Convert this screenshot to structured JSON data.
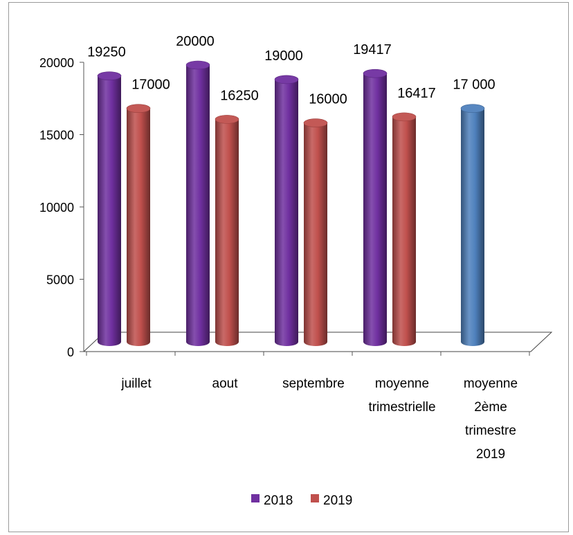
{
  "chart_data": {
    "type": "bar",
    "categories": [
      [
        "juillet"
      ],
      [
        "aout"
      ],
      [
        "septembre"
      ],
      [
        "moyenne",
        "trimestrielle"
      ],
      [
        "moyenne",
        "2ème",
        "trimestre",
        "2019"
      ]
    ],
    "series": [
      {
        "name": "2018",
        "color": "#7030A0",
        "values": [
          19250,
          20000,
          19000,
          19417,
          null
        ],
        "labels": [
          "19250",
          "20000",
          "19000",
          "19417",
          ""
        ]
      },
      {
        "name": "2019",
        "color": "#C0504D",
        "values": [
          17000,
          16250,
          16000,
          16417,
          null
        ],
        "labels": [
          "17000",
          "16250",
          "16000",
          "16417",
          ""
        ]
      }
    ],
    "extra_bar": {
      "category_index": 4,
      "value": 17000,
      "label": "17 000",
      "color": "#4F81BD"
    },
    "ylim": [
      0,
      20000
    ],
    "yticks": [
      "0",
      "5000",
      "10000",
      "15000",
      "20000"
    ],
    "legend": {
      "position": "bottom",
      "entries": [
        "2018",
        "2019"
      ]
    },
    "style": "3d-cylinder",
    "grid": false
  }
}
